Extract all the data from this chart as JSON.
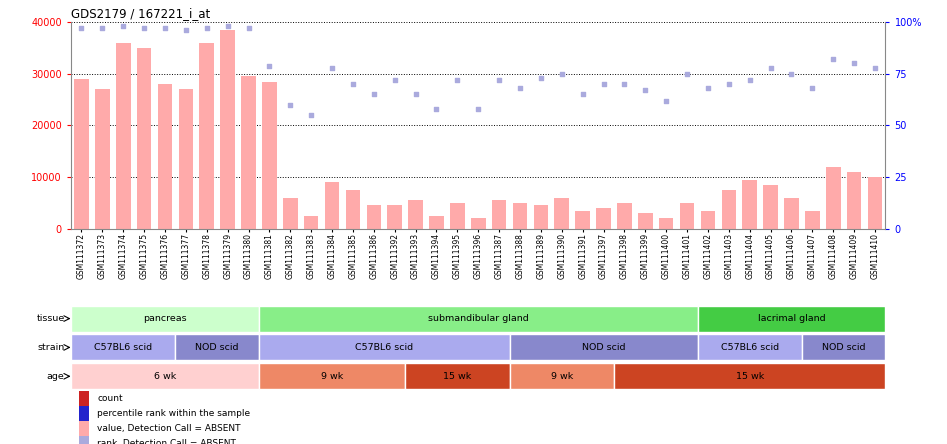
{
  "title": "GDS2179 / 167221_i_at",
  "samples": [
    "GSM111372",
    "GSM111373",
    "GSM111374",
    "GSM111375",
    "GSM111376",
    "GSM111377",
    "GSM111378",
    "GSM111379",
    "GSM111380",
    "GSM111381",
    "GSM111382",
    "GSM111383",
    "GSM111384",
    "GSM111385",
    "GSM111386",
    "GSM111392",
    "GSM111393",
    "GSM111394",
    "GSM111395",
    "GSM111396",
    "GSM111387",
    "GSM111388",
    "GSM111389",
    "GSM111390",
    "GSM111391",
    "GSM111397",
    "GSM111398",
    "GSM111399",
    "GSM111400",
    "GSM111401",
    "GSM111402",
    "GSM111403",
    "GSM111404",
    "GSM111405",
    "GSM111406",
    "GSM111407",
    "GSM111408",
    "GSM111409",
    "GSM111410"
  ],
  "bar_values": [
    29000,
    27000,
    36000,
    35000,
    28000,
    27000,
    36000,
    38500,
    29500,
    28500,
    6000,
    2500,
    9000,
    7500,
    4500,
    4500,
    5500,
    2500,
    5000,
    2000,
    5500,
    5000,
    4500,
    6000,
    3500,
    4000,
    5000,
    3000,
    2000,
    5000,
    3500,
    7500,
    9500,
    8500,
    6000,
    3500,
    12000,
    11000,
    10000
  ],
  "scatter_values": [
    97,
    97,
    98,
    97,
    97,
    96,
    97,
    98,
    97,
    79,
    60,
    55,
    78,
    70,
    65,
    72,
    65,
    58,
    72,
    58,
    72,
    68,
    73,
    75,
    65,
    70,
    70,
    67,
    62,
    75,
    68,
    70,
    72,
    78,
    75,
    68,
    82,
    80,
    78
  ],
  "ylim_left": [
    0,
    40000
  ],
  "ylim_right": [
    0,
    100
  ],
  "yticks_left": [
    0,
    10000,
    20000,
    30000,
    40000
  ],
  "yticks_right": [
    0,
    25,
    50,
    75,
    100
  ],
  "bar_color": "#ffaaaa",
  "scatter_color": "#aaaadd",
  "tissue_groups": [
    {
      "label": "pancreas",
      "start": 0,
      "end": 9,
      "color": "#ccffcc"
    },
    {
      "label": "submandibular gland",
      "start": 9,
      "end": 30,
      "color": "#88ee88"
    },
    {
      "label": "lacrimal gland",
      "start": 30,
      "end": 39,
      "color": "#44cc44"
    }
  ],
  "strain_groups": [
    {
      "label": "C57BL6 scid",
      "start": 0,
      "end": 5,
      "color": "#aaaaee"
    },
    {
      "label": "NOD scid",
      "start": 5,
      "end": 9,
      "color": "#9999cc"
    },
    {
      "label": "C57BL6 scid",
      "start": 9,
      "end": 21,
      "color": "#aaaaee"
    },
    {
      "label": "NOD scid",
      "start": 21,
      "end": 30,
      "color": "#9999cc"
    },
    {
      "label": "C57BL6 scid",
      "start": 30,
      "end": 35,
      "color": "#aaaaee"
    },
    {
      "label": "NOD scid",
      "start": 35,
      "end": 39,
      "color": "#9999cc"
    }
  ],
  "age_groups": [
    {
      "label": "6 wk",
      "start": 0,
      "end": 9,
      "color": "#ffd0d0"
    },
    {
      "label": "9 wk",
      "start": 9,
      "end": 16,
      "color": "#ee8866"
    },
    {
      "label": "15 wk",
      "start": 16,
      "end": 21,
      "color": "#cc4422"
    },
    {
      "label": "9 wk",
      "start": 21,
      "end": 26,
      "color": "#ee8866"
    },
    {
      "label": "15 wk",
      "start": 26,
      "end": 39,
      "color": "#cc4422"
    }
  ],
  "legend_items": [
    {
      "label": "count",
      "color": "#cc2222"
    },
    {
      "label": "percentile rank within the sample",
      "color": "#2222cc"
    },
    {
      "label": "value, Detection Call = ABSENT",
      "color": "#ffaaaa"
    },
    {
      "label": "rank, Detection Call = ABSENT",
      "color": "#aaaadd"
    }
  ],
  "background_color": "#ffffff"
}
